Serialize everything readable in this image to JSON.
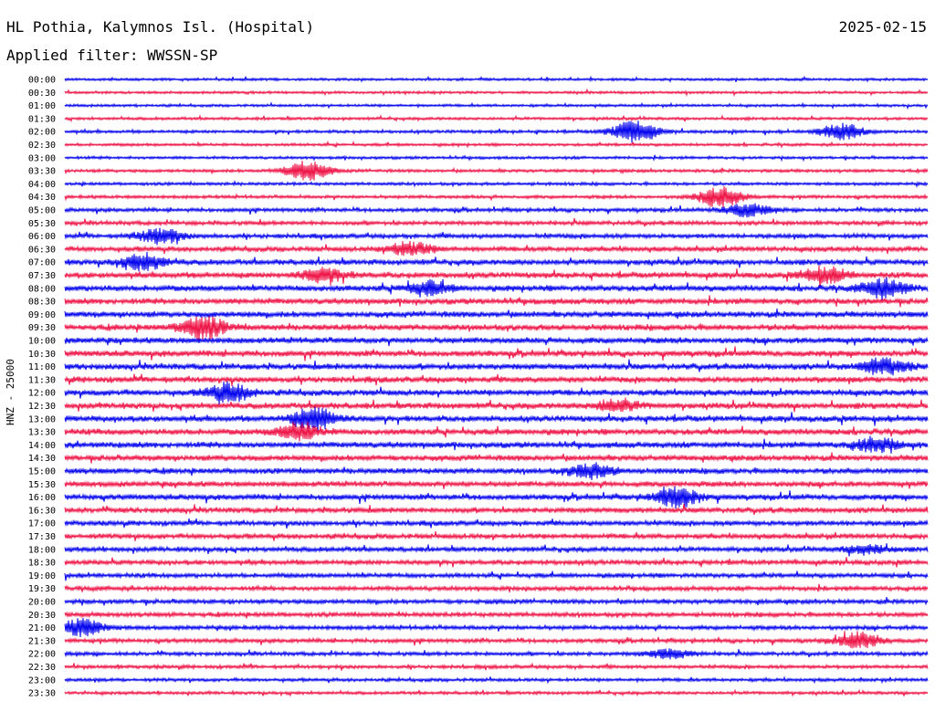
{
  "header": {
    "station": "HL Pothia, Kalymnos Isl. (Hospital)",
    "date": "2025-02-15",
    "filter_prefix": "Applied filter:",
    "filter_name": "WWSSN-SP"
  },
  "channel_label": "HNZ - 25000",
  "colors": {
    "even_hour": "#0000ee",
    "half_hour": "#ee1144",
    "text": "#000000"
  },
  "chart_data": {
    "type": "line",
    "row_labels": [
      "00:00",
      "00:30",
      "01:00",
      "01:30",
      "02:00",
      "02:30",
      "03:00",
      "03:30",
      "04:00",
      "04:30",
      "05:00",
      "05:30",
      "06:00",
      "06:30",
      "07:00",
      "07:30",
      "08:00",
      "08:30",
      "09:00",
      "09:30",
      "10:00",
      "10:30",
      "11:00",
      "11:30",
      "12:00",
      "12:30",
      "13:00",
      "13:30",
      "14:00",
      "14:30",
      "15:00",
      "15:30",
      "16:00",
      "16:30",
      "17:00",
      "17:30",
      "18:00",
      "18:30",
      "19:00",
      "19:30",
      "20:00",
      "20:30",
      "21:00",
      "21:30",
      "22:00",
      "22:30",
      "23:00",
      "23:30"
    ],
    "noise_level": [
      0.3,
      0.3,
      0.3,
      0.35,
      0.4,
      0.35,
      0.35,
      0.4,
      0.4,
      0.45,
      0.55,
      0.6,
      0.7,
      0.8,
      0.9,
      0.95,
      1.0,
      1.0,
      1.0,
      1.0,
      1.0,
      1.0,
      1.0,
      1.0,
      1.0,
      1.0,
      1.0,
      1.0,
      1.0,
      0.95,
      0.9,
      0.9,
      0.9,
      0.85,
      0.8,
      0.8,
      0.75,
      0.75,
      0.7,
      0.7,
      0.7,
      0.7,
      0.65,
      0.6,
      0.55,
      0.5,
      0.45,
      0.4
    ],
    "events": [
      {
        "row": 4,
        "position": 0.66,
        "strength": 1.0
      },
      {
        "row": 4,
        "position": 0.9,
        "strength": 0.7
      },
      {
        "row": 7,
        "position": 0.28,
        "strength": 0.9
      },
      {
        "row": 9,
        "position": 0.76,
        "strength": 0.9
      },
      {
        "row": 10,
        "position": 0.79,
        "strength": 0.6
      },
      {
        "row": 12,
        "position": 0.11,
        "strength": 0.7
      },
      {
        "row": 13,
        "position": 0.4,
        "strength": 0.6
      },
      {
        "row": 14,
        "position": 0.09,
        "strength": 0.7
      },
      {
        "row": 15,
        "position": 0.3,
        "strength": 0.6
      },
      {
        "row": 15,
        "position": 0.88,
        "strength": 0.7
      },
      {
        "row": 16,
        "position": 0.42,
        "strength": 0.6
      },
      {
        "row": 16,
        "position": 0.95,
        "strength": 0.8
      },
      {
        "row": 19,
        "position": 0.16,
        "strength": 1.0
      },
      {
        "row": 22,
        "position": 0.95,
        "strength": 0.7
      },
      {
        "row": 24,
        "position": 0.19,
        "strength": 0.8
      },
      {
        "row": 25,
        "position": 0.64,
        "strength": 0.5
      },
      {
        "row": 26,
        "position": 0.29,
        "strength": 1.0
      },
      {
        "row": 27,
        "position": 0.27,
        "strength": 0.7
      },
      {
        "row": 28,
        "position": 0.94,
        "strength": 0.6
      },
      {
        "row": 30,
        "position": 0.61,
        "strength": 0.6
      },
      {
        "row": 32,
        "position": 0.71,
        "strength": 0.9
      },
      {
        "row": 36,
        "position": 0.93,
        "strength": 0.4
      },
      {
        "row": 42,
        "position": 0.02,
        "strength": 0.8
      },
      {
        "row": 43,
        "position": 0.92,
        "strength": 0.7
      },
      {
        "row": 44,
        "position": 0.7,
        "strength": 0.4
      }
    ]
  }
}
